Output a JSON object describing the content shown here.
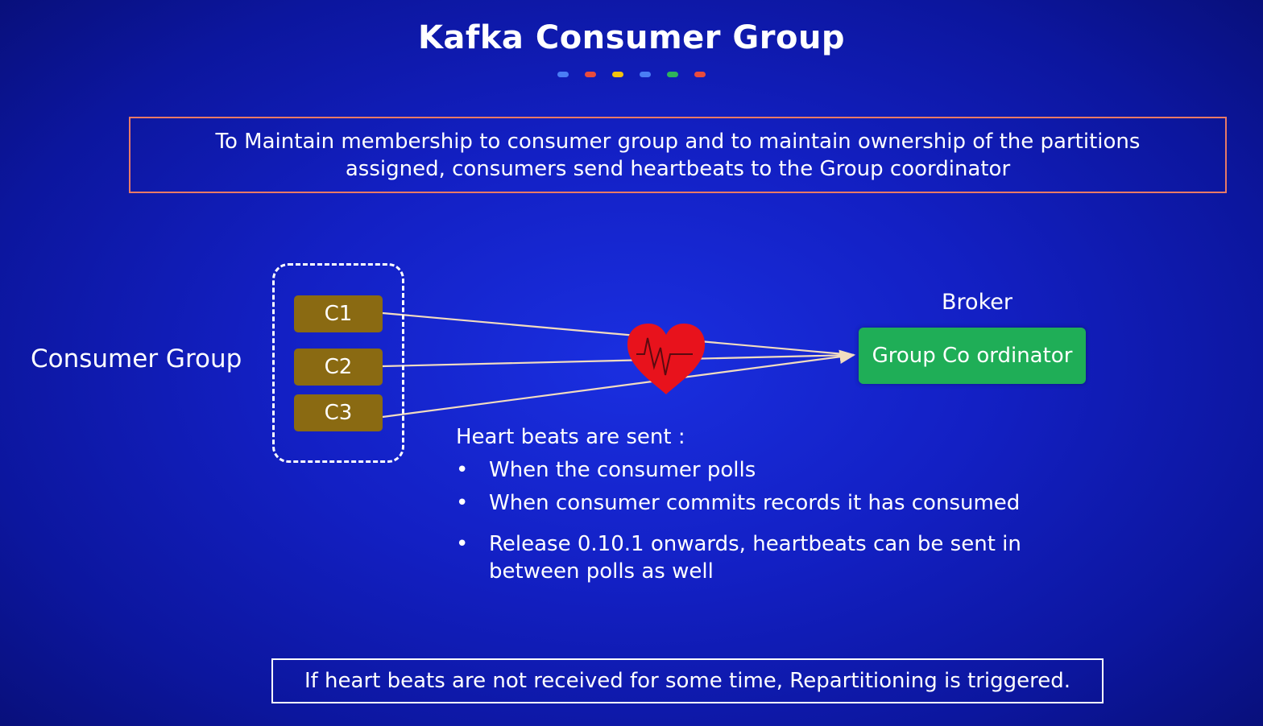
{
  "title": "Kafka Consumer  Group",
  "accent_dots": [
    "#4a7df5",
    "#e94b3c",
    "#f4c20d",
    "#4a7df5",
    "#2fb35b",
    "#e94b3c"
  ],
  "intro": "To Maintain membership to consumer group and to maintain ownership of the partitions assigned, consumers send heartbeats to the Group coordinator",
  "consumer_group": {
    "label": "Consumer Group",
    "consumers": [
      "C1",
      "C2",
      "C3"
    ]
  },
  "broker": {
    "label": "Broker",
    "coordinator": "Group Co ordinator"
  },
  "heartbeats": {
    "title": "Heart beats are sent :",
    "bullet": "•",
    "items": [
      "When the consumer polls",
      "When consumer commits records it has consumed",
      "Release 0.10.1 onwards, heartbeats can be sent in between polls as well"
    ]
  },
  "footer": "If heart beats are not received for some time, Repartitioning is triggered.",
  "icons": [
    "heart-pulse-icon",
    "arrow-head-icon"
  ],
  "colors": {
    "background": "#1320c4",
    "intro_border": "#e87a66",
    "consumer_fill": "#8a6a12",
    "coordinator_fill": "#1fae57",
    "heart": "#e8121c",
    "connector": "#f2dcc0"
  }
}
